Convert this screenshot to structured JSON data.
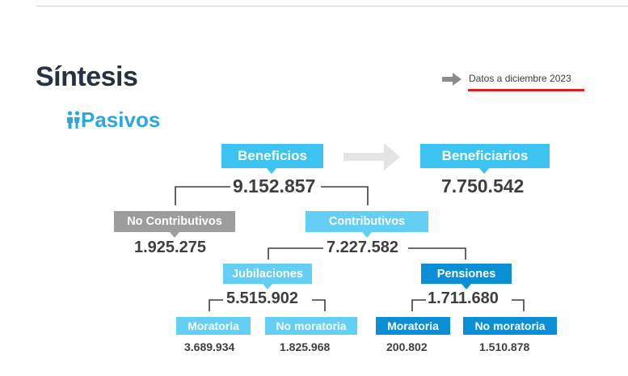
{
  "header": {
    "title": "Síntesis",
    "section": "Pasivos",
    "note": "Datos a diciembre 2023",
    "note_accent": "#e02020",
    "icons": [
      "people-icon",
      "arrow-right-icon"
    ]
  },
  "colors": {
    "light_blue": "#3cc3f2",
    "lighter_blue": "#63cff5",
    "dark_blue": "#0a8fd6",
    "gray": "#9d9d9d",
    "arrow_gray": "#e4e4e4"
  },
  "diagram": {
    "beneficios": {
      "label": "Beneficios",
      "value": "9.152.857"
    },
    "beneficiarios": {
      "label": "Beneficiarios",
      "value": "7.750.542"
    },
    "no_contributivos": {
      "label": "No Contributivos",
      "value": "1.925.275"
    },
    "contributivos": {
      "label": "Contributivos",
      "value": "7.227.582"
    },
    "jubilaciones": {
      "label": "Jubilaciones",
      "value": "5.515.902"
    },
    "pensiones": {
      "label": "Pensiones",
      "value": "1.711.680"
    },
    "jub_moratoria": {
      "label": "Moratoria",
      "value": "3.689.934"
    },
    "jub_no_moratoria": {
      "label": "No moratoria",
      "value": "1.825.968"
    },
    "pen_moratoria": {
      "label": "Moratoria",
      "value": "200.802"
    },
    "pen_no_moratoria": {
      "label": "No moratoria",
      "value": "1.510.878"
    }
  }
}
